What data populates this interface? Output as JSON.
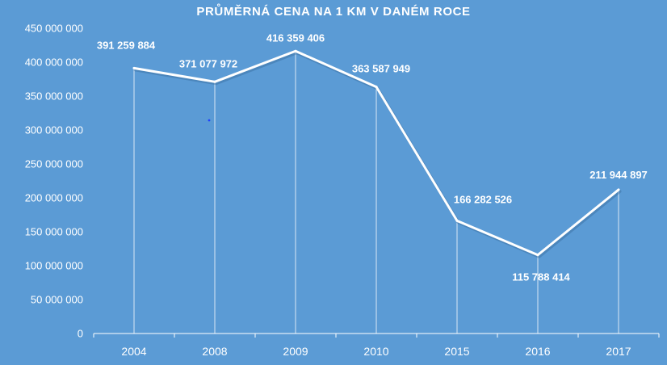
{
  "chart_data": {
    "type": "line",
    "title": "PRŮMĚRNÁ CENA NA 1 KM V DANÉM ROCE",
    "xlabel": "",
    "ylabel": "",
    "categories": [
      "2004",
      "2008",
      "2009",
      "2010",
      "2015",
      "2016",
      "2017"
    ],
    "values": [
      391259884,
      371077972,
      416359406,
      363587949,
      166282526,
      115788414,
      211944897
    ],
    "data_labels": [
      "391 259 884",
      "371 077 972",
      "416 359 406",
      "363 587 949",
      "166 282 526",
      "115 788 414",
      "211 944 897"
    ],
    "ylim": [
      0,
      450000000
    ],
    "yticks": [
      0,
      50000000,
      100000000,
      150000000,
      200000000,
      250000000,
      300000000,
      350000000,
      400000000,
      450000000
    ],
    "ytick_labels": [
      "0",
      "50 000 000",
      "100 000 000",
      "150 000 000",
      "200 000 000",
      "250 000 000",
      "300 000 000",
      "350 000 000",
      "400 000 000",
      "450 000 000"
    ],
    "grid": false,
    "drop_lines": true,
    "legend": "none",
    "colors": {
      "background": "#5b9bd5",
      "line": "#ffffff",
      "text": "#ffffff",
      "axis": "#ffffff"
    }
  }
}
